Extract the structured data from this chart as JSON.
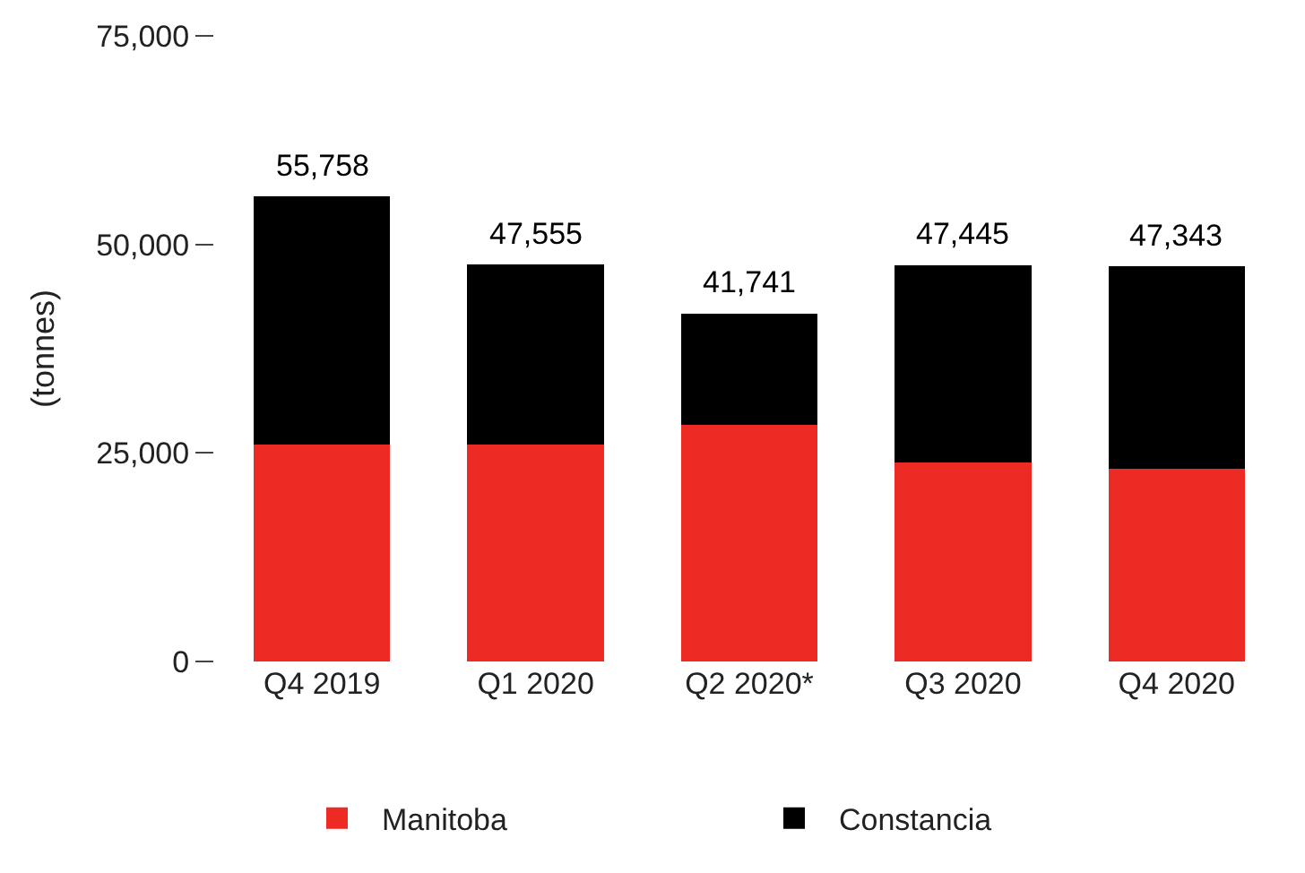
{
  "chart_data": {
    "type": "bar",
    "stacked": true,
    "ylabel": "(tonnes)",
    "categories": [
      "Q4 2019",
      "Q1 2020",
      "Q2 2020*",
      "Q3 2020",
      "Q4 2020"
    ],
    "series": [
      {
        "name": "Manitoba",
        "color": "#ee2a24",
        "values": [
          26000,
          26000,
          28400,
          23900,
          23100
        ]
      },
      {
        "name": "Constancia",
        "color": "#000000",
        "values": [
          29758,
          21555,
          13341,
          23545,
          24243
        ]
      }
    ],
    "totals": [
      "55,758",
      "47,555",
      "41,741",
      "47,445",
      "47,343"
    ],
    "ylim": [
      0,
      75000
    ],
    "yticks": [
      {
        "value": 0,
        "label": "0"
      },
      {
        "value": 25000,
        "label": "25,000"
      },
      {
        "value": 50000,
        "label": "50,000"
      },
      {
        "value": 75000,
        "label": "75,000"
      }
    ],
    "grid": false,
    "legend": "bottom"
  }
}
